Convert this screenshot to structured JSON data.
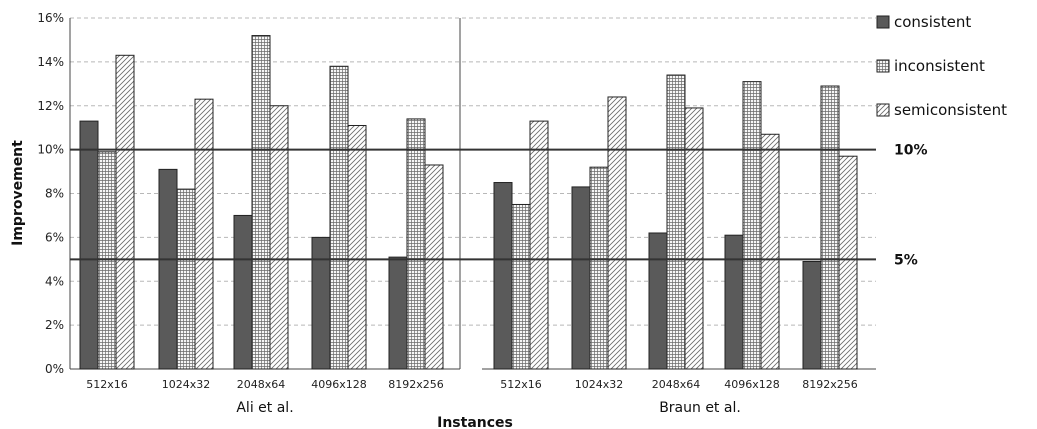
{
  "chart_data": {
    "type": "bar",
    "title": "",
    "xlabel": "Instances",
    "ylabel": "Improvement",
    "ylim": [
      0,
      16
    ],
    "yticks": [
      "0%",
      "2%",
      "4%",
      "6%",
      "8%",
      "10%",
      "12%",
      "14%",
      "16%"
    ],
    "grid": true,
    "legend_position": "top-right",
    "reference_lines": [
      {
        "value": 10,
        "label": "10%"
      },
      {
        "value": 5,
        "label": "5%"
      }
    ],
    "series_names": [
      "consistent",
      "inconsistent",
      "semiconsistent"
    ],
    "series_colors": [
      "#5a5a5a",
      "#f4f4f4",
      "#ffffff"
    ],
    "groups": [
      {
        "name": "Ali et al.",
        "categories": [
          "512x16",
          "1024x32",
          "2048x64",
          "4096x128",
          "8192x256"
        ],
        "series": [
          {
            "name": "consistent",
            "values": [
              11.3,
              9.1,
              7.0,
              6.0,
              5.1
            ]
          },
          {
            "name": "inconsistent",
            "values": [
              9.9,
              8.2,
              15.2,
              13.8,
              11.4
            ]
          },
          {
            "name": "semiconsistent",
            "values": [
              14.3,
              12.3,
              12.0,
              11.1,
              9.3
            ]
          }
        ]
      },
      {
        "name": "Braun et al.",
        "categories": [
          "512x16",
          "1024x32",
          "2048x64",
          "4096x128",
          "8192x256"
        ],
        "series": [
          {
            "name": "consistent",
            "values": [
              8.5,
              8.3,
              6.2,
              6.1,
              4.9
            ]
          },
          {
            "name": "inconsistent",
            "values": [
              7.5,
              9.2,
              13.4,
              13.1,
              12.9
            ]
          },
          {
            "name": "semiconsistent",
            "values": [
              11.3,
              12.4,
              11.9,
              10.7,
              9.7
            ]
          }
        ]
      }
    ]
  }
}
